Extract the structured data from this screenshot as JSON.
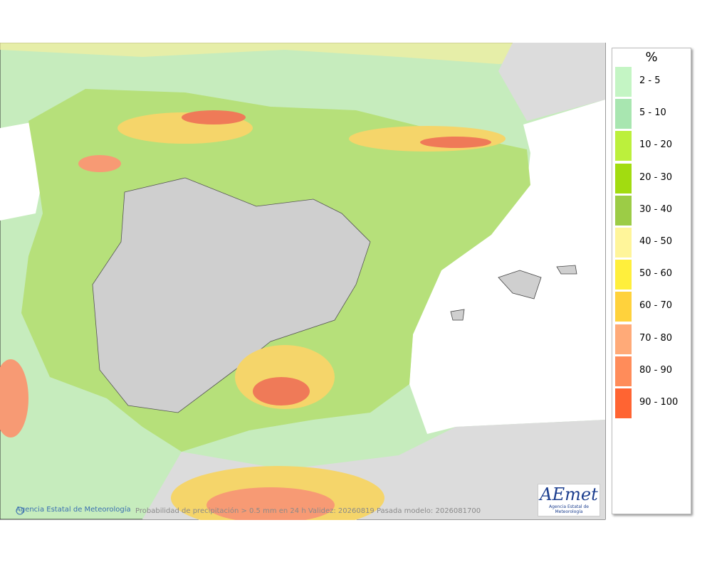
{
  "legend": {
    "title": "%",
    "items": [
      {
        "label": "2 - 5",
        "color": "#c4f5c4"
      },
      {
        "label": "5 - 10",
        "color": "#a8e6b0"
      },
      {
        "label": "10 - 20",
        "color": "#bcf03c"
      },
      {
        "label": "20 - 30",
        "color": "#a2dc10"
      },
      {
        "label": "30 - 40",
        "color": "#9ccc46"
      },
      {
        "label": "40 - 50",
        "color": "#fff59a"
      },
      {
        "label": "50 - 60",
        "color": "#ffef3c"
      },
      {
        "label": "60 - 70",
        "color": "#ffd23c"
      },
      {
        "label": "70 - 80",
        "color": "#ffaa78"
      },
      {
        "label": "80 - 90",
        "color": "#ff8c5a"
      },
      {
        "label": "90 - 100",
        "color": "#ff6432"
      }
    ]
  },
  "footer": {
    "credit": "Agencia Estatal de Meteorología",
    "note": "Probabilidad de precipitación > 0.5 mm en 24 h Validez: 20260819 Pasada modelo: 2026081700"
  },
  "logo": {
    "name": "AEmet",
    "subtitle": "Agencia Estatal de Meteorología"
  }
}
